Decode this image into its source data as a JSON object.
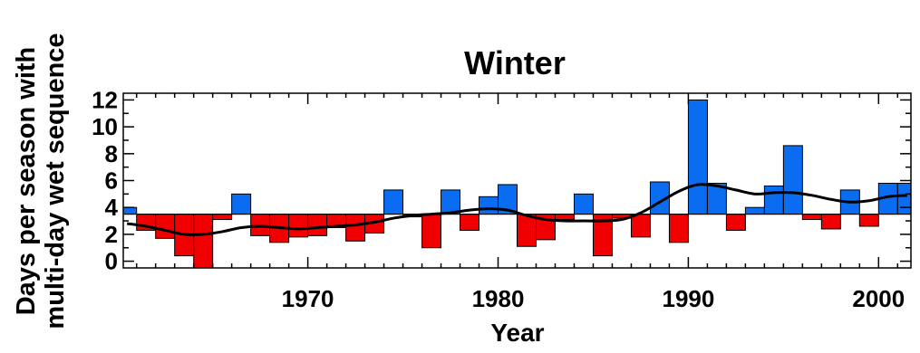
{
  "chart_data": {
    "type": "bar",
    "title": "Winter",
    "xlabel": "Year",
    "ylabel_lines": [
      "Days per season with",
      "multi-day wet sequence"
    ],
    "baseline": 3.5,
    "xlim": [
      1960.3,
      2001.7
    ],
    "ylim": [
      -0.5,
      12.5
    ],
    "xticks": [
      1970,
      1980,
      1990,
      2000
    ],
    "yticks": [
      0,
      2,
      4,
      6,
      8,
      10,
      12
    ],
    "colors": {
      "above": "#0a6cf0",
      "below": "#f00000",
      "line": "#000000"
    },
    "years": [
      1960,
      1961,
      1962,
      1963,
      1964,
      1965,
      1966,
      1967,
      1968,
      1969,
      1970,
      1971,
      1972,
      1973,
      1974,
      1975,
      1976,
      1977,
      1978,
      1979,
      1980,
      1981,
      1982,
      1983,
      1984,
      1985,
      1986,
      1987,
      1988,
      1989,
      1990,
      1991,
      1992,
      1993,
      1994,
      1995,
      1996,
      1997,
      1998,
      1999,
      2000,
      2001
    ],
    "values": [
      4.0,
      2.3,
      1.7,
      0.4,
      -0.5,
      3.1,
      5.0,
      1.9,
      1.4,
      1.8,
      1.9,
      2.5,
      1.5,
      2.1,
      5.3,
      3.3,
      1.0,
      5.3,
      2.3,
      4.8,
      5.7,
      1.1,
      1.6,
      3.1,
      5.0,
      0.4,
      3.2,
      1.8,
      5.9,
      1.4,
      12.0,
      5.8,
      2.3,
      4.0,
      5.6,
      8.6,
      3.1,
      2.4,
      5.3,
      2.6,
      5.8,
      5.8
    ],
    "smooth": [
      2.8,
      2.6,
      2.3,
      2.0,
      2.0,
      2.2,
      2.5,
      2.6,
      2.5,
      2.4,
      2.5,
      2.6,
      2.7,
      2.9,
      3.2,
      3.4,
      3.5,
      3.6,
      3.8,
      3.9,
      3.8,
      3.4,
      3.1,
      3.0,
      3.0,
      3.0,
      3.1,
      3.6,
      4.4,
      5.2,
      5.7,
      5.6,
      5.3,
      5.0,
      5.1,
      5.1,
      4.9,
      4.6,
      4.4,
      4.5,
      4.8,
      4.9
    ]
  }
}
